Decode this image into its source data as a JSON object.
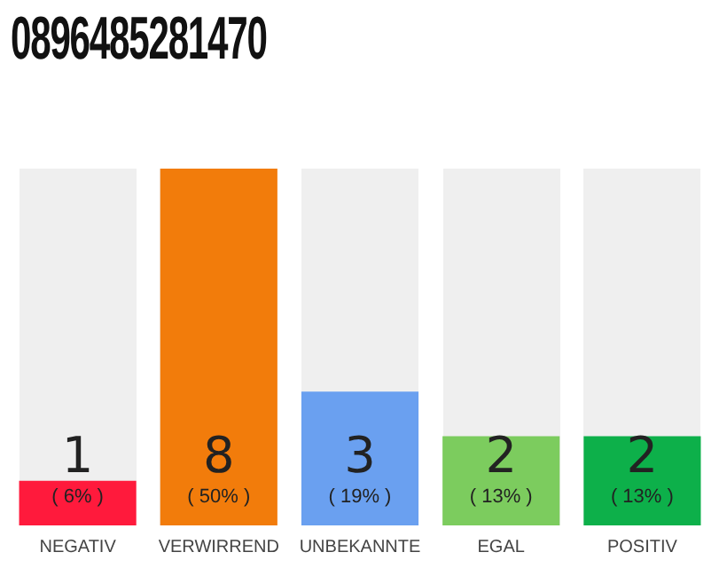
{
  "chart_data": {
    "type": "bar",
    "title": "0896485281470",
    "categories": [
      "NEGATIV",
      "VERWIRREND",
      "UNBEKANNTE",
      "EGAL",
      "POSITIV"
    ],
    "values": [
      1,
      8,
      3,
      2,
      2
    ],
    "colors": [
      "#ff1a3c",
      "#f27c0b",
      "#6aa0f0",
      "#7ccc5e",
      "#0db04a"
    ],
    "data_labels": true,
    "annotations": [
      "( 6% )",
      "( 50% )",
      "( 19% )",
      "( 13% )",
      "( 13% )"
    ],
    "grid": false,
    "legend": false
  }
}
